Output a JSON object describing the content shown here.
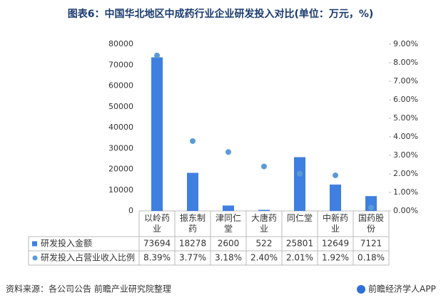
{
  "chart_data": {
    "type": "bar",
    "title": "图表6：中国华北地区中成药行业企业研发投入对比(单位：万元，%)",
    "categories": [
      "以岭药业",
      "振东制药",
      "津同仁堂",
      "大唐药业",
      "同仁堂",
      "中新药业",
      "国药股份"
    ],
    "series": [
      {
        "name": "研发投入金额",
        "color": "#3f7fe0",
        "values": [
          73694,
          18278,
          2600,
          522,
          25801,
          12649,
          7121
        ]
      },
      {
        "name": "研发投入占营业收入比例",
        "type": "scatter",
        "axis": "y2",
        "color": "#5b9bd5",
        "values": [
          8.39,
          3.77,
          3.18,
          2.4,
          2.01,
          1.92,
          0.18
        ],
        "value_labels": [
          "8.39%",
          "3.77%",
          "3.18%",
          "2.40%",
          "2.01%",
          "1.92%",
          "0.18%"
        ]
      }
    ],
    "ylim": [
      0,
      80000
    ],
    "yticks": [
      0,
      10000,
      20000,
      30000,
      40000,
      50000,
      60000,
      70000,
      80000
    ],
    "y2lim": [
      0,
      9
    ],
    "y2ticks": [
      {
        "value": 0,
        "label": "0.00%"
      },
      {
        "value": 1,
        "label": "1.00%"
      },
      {
        "value": 2,
        "label": "2.00%"
      },
      {
        "value": 3,
        "label": "3.00%"
      },
      {
        "value": 4,
        "label": "4.00%"
      },
      {
        "value": 5,
        "label": "5.00%"
      },
      {
        "value": 6,
        "label": "6.00%"
      },
      {
        "value": 7,
        "label": "7.00%"
      },
      {
        "value": 8,
        "label": "8.00%"
      },
      {
        "value": 9,
        "label": "9.00%"
      }
    ]
  },
  "source": "资料来源：各公司公告 前瞻产业研究院整理",
  "logo": "前瞻经济学人APP"
}
